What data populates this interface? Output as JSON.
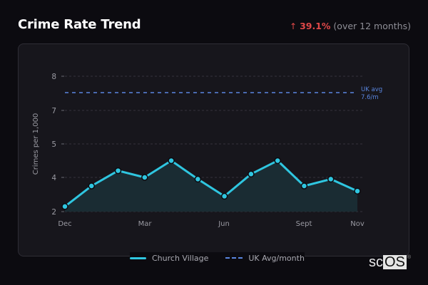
{
  "header": {
    "title": "Crime Rate Trend",
    "change_arrow": "↑",
    "change_pct": "39.1%",
    "change_period": "(over 12 months)"
  },
  "colors": {
    "background": "#0c0b10",
    "card": "#17161c",
    "series": "#2fc6e0",
    "series_fill": "#1a2c33",
    "uk_avg": "#5a86e0",
    "increase": "#e04848"
  },
  "annotation": {
    "line1": "UK avg",
    "line2": "7.6/m"
  },
  "legend": {
    "items": [
      {
        "label": "Church Village",
        "style": "solid"
      },
      {
        "label": "UK Avg/month",
        "style": "dashed"
      }
    ]
  },
  "logo": {
    "text_sc": "sc",
    "text_os": "OS",
    "reg": "®"
  },
  "chart_data": {
    "type": "area",
    "title": "Crime Rate Trend",
    "xlabel": "",
    "ylabel": "Crimes per 1,000",
    "x": [
      "Dec",
      "Jan",
      "Feb",
      "Mar",
      "Apr",
      "May",
      "Jun",
      "Jul",
      "Aug",
      "Sept",
      "Oct",
      "Nov"
    ],
    "x_tick_labels": [
      "Dec",
      "Mar",
      "Jun",
      "Sept",
      "Nov"
    ],
    "y_tick_labels": [
      "2",
      "4",
      "5",
      "7",
      "8"
    ],
    "series": [
      {
        "name": "Church Village",
        "values": [
          2.3,
          3.5,
          4.2,
          4.0,
          4.5,
          3.9,
          2.9,
          4.1,
          4.5,
          3.5,
          3.9,
          3.2
        ]
      },
      {
        "name": "UK Avg/month",
        "values": [
          7.6,
          7.6,
          7.6,
          7.6,
          7.6,
          7.6,
          7.6,
          7.6,
          7.6,
          7.6,
          7.6,
          7.6
        ],
        "style": "dashed"
      }
    ],
    "annotations": [
      "UK avg 7.6/m"
    ],
    "summary": "↑ 39.1% (over 12 months)",
    "grid": true,
    "legend_position": "bottom"
  }
}
